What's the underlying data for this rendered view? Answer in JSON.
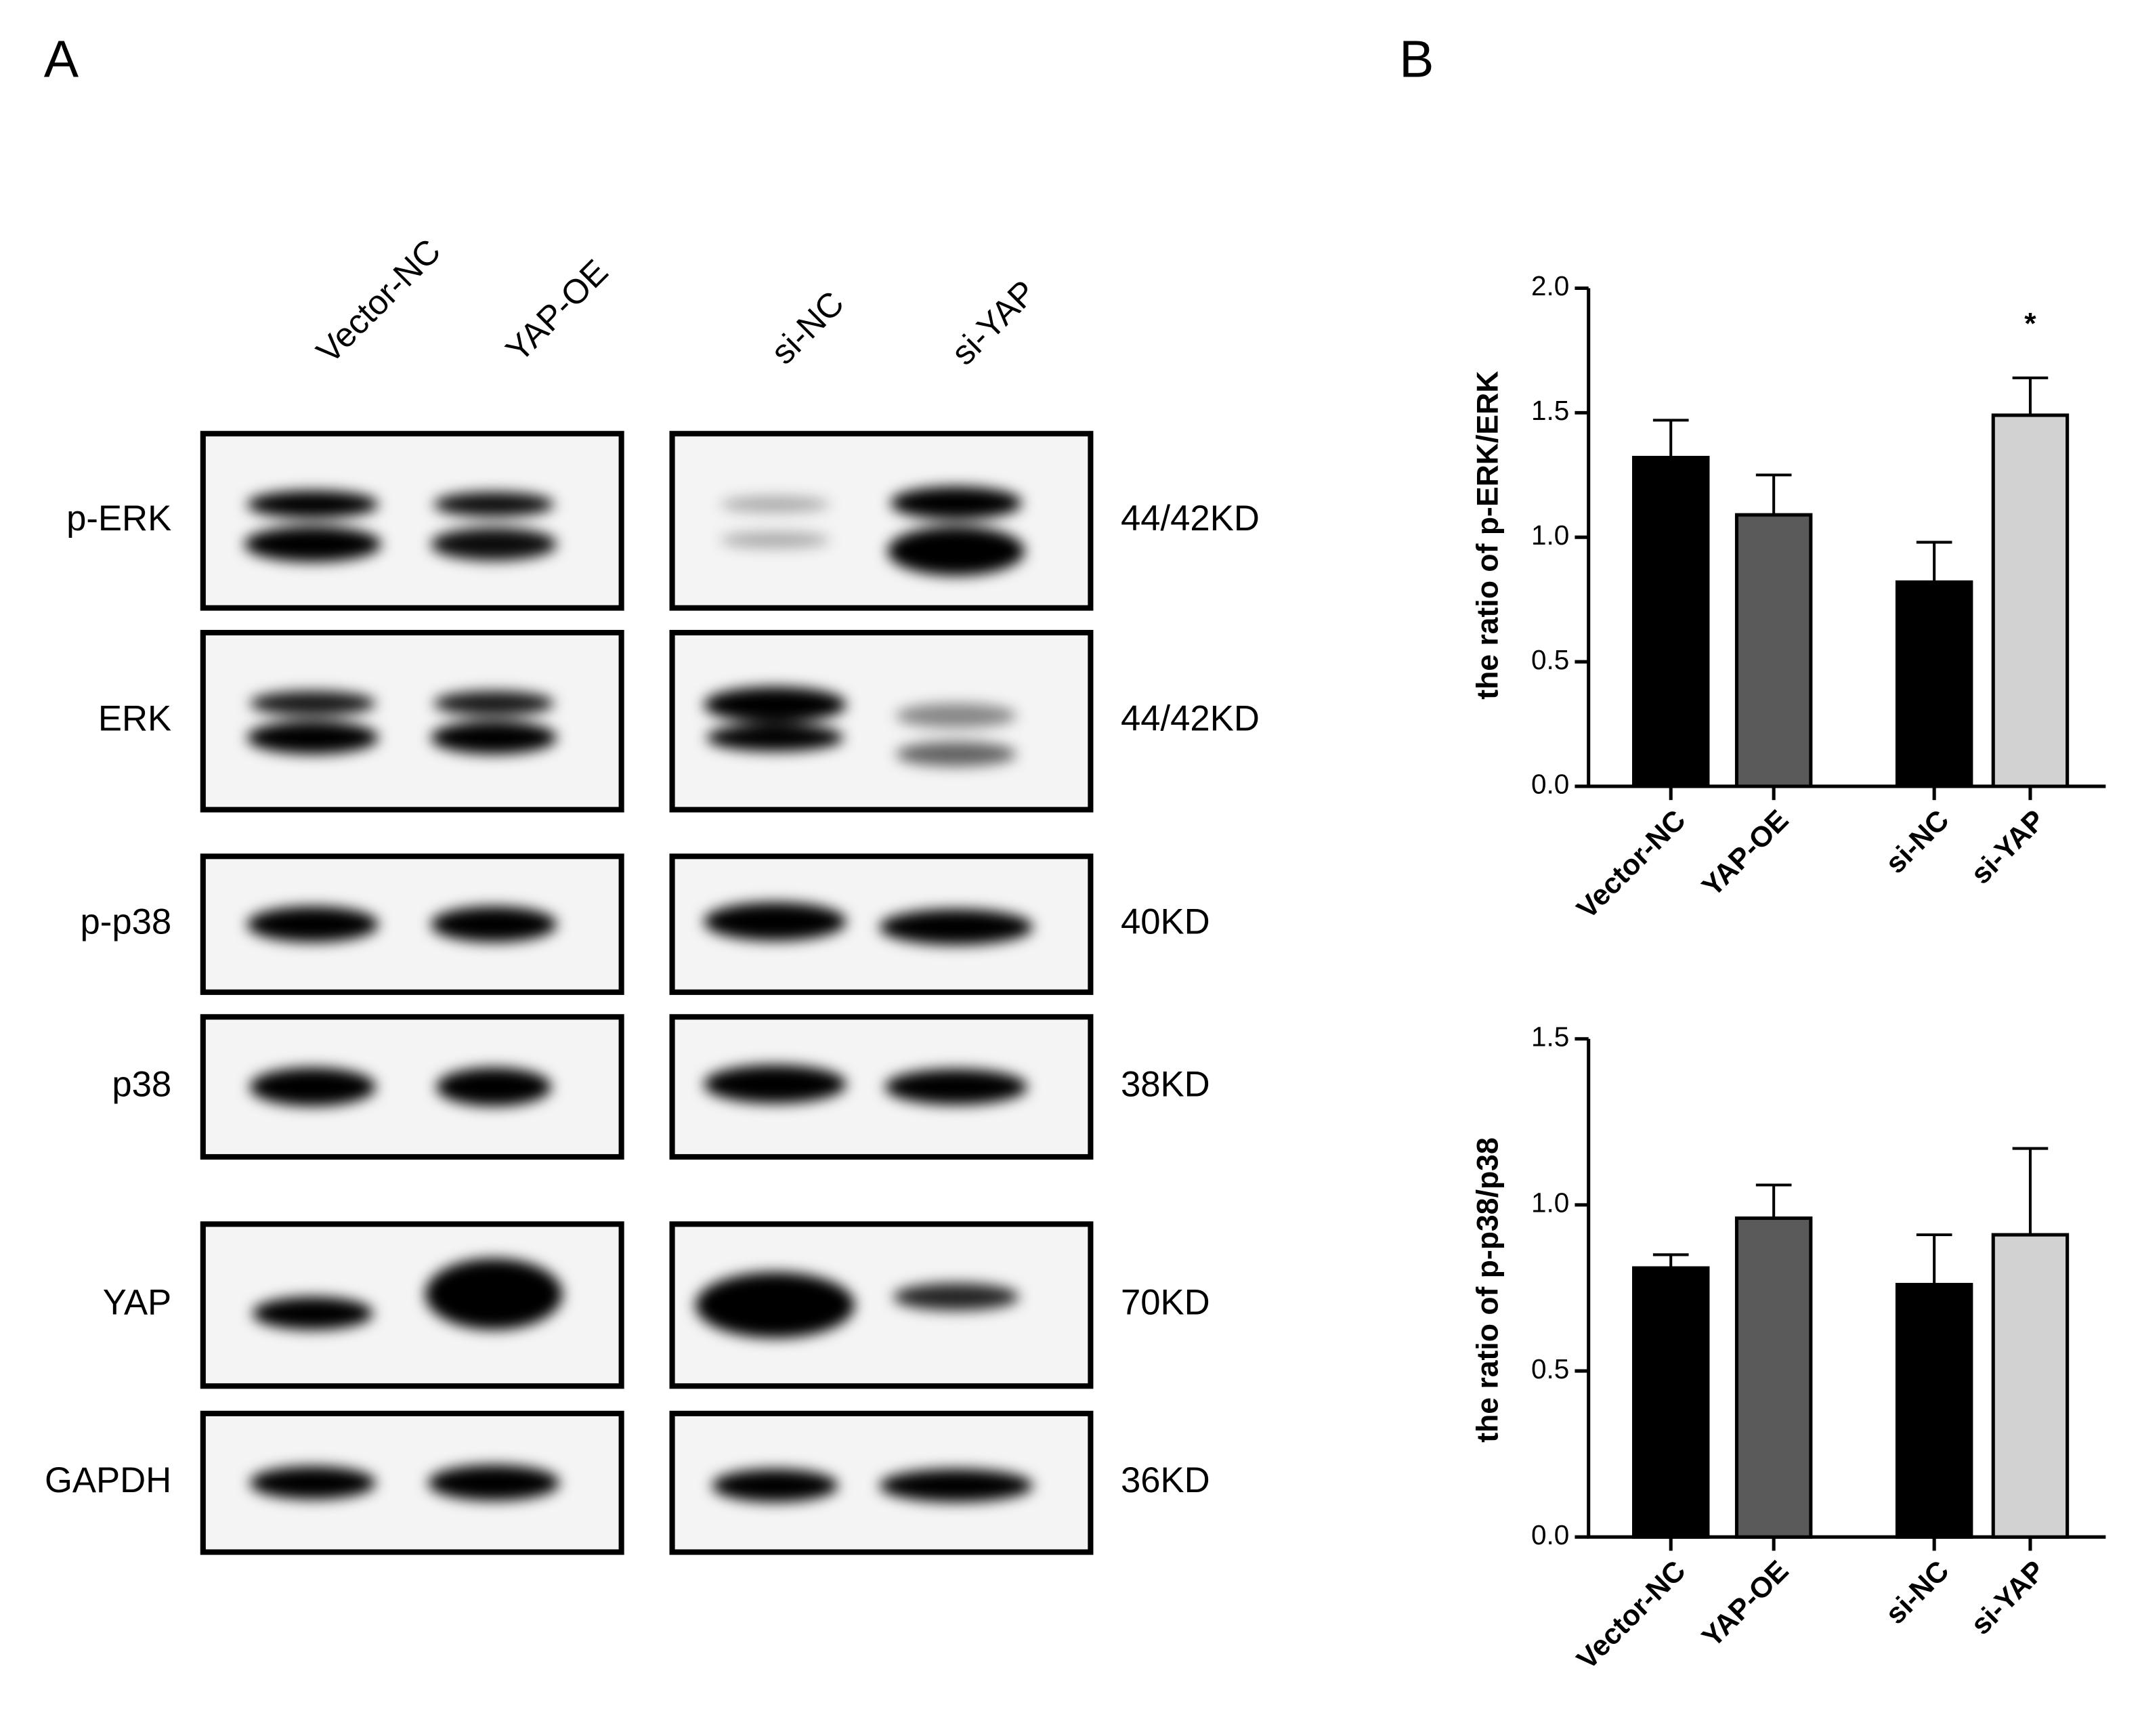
{
  "panel_labels": [
    "A",
    "B"
  ],
  "blot": {
    "lanes": [
      "Vector-NC",
      "YAP-OE",
      "si-NC",
      "si-YAP"
    ],
    "rows": [
      {
        "label": "p-ERK",
        "size": "44/42KD"
      },
      {
        "label": "ERK",
        "size": "44/42KD"
      },
      {
        "label": "p-p38",
        "size": "40KD"
      },
      {
        "label": "p38",
        "size": "38KD"
      },
      {
        "label": "YAP",
        "size": "70KD"
      },
      {
        "label": "GAPDH",
        "size": "36KD"
      }
    ]
  },
  "chart_data": [
    {
      "type": "bar",
      "ylabel": "the ratio of p-ERK/ERK",
      "categories": [
        "Vector-NC",
        "YAP-OE",
        "si-NC",
        "si-YAP"
      ],
      "values": [
        1.32,
        1.09,
        0.82,
        1.49
      ],
      "errors": [
        0.15,
        0.16,
        0.16,
        0.15
      ],
      "colors": [
        "#000000",
        "#5a5a5a",
        "#000000",
        "#d2d2d2"
      ],
      "annotations": [
        null,
        null,
        null,
        "*"
      ],
      "ylim": [
        0,
        2.0
      ],
      "yticks": [
        {
          "value": 0,
          "label": "0.0"
        },
        0.5,
        {
          "value": 1,
          "label": "1.0"
        },
        1.5,
        {
          "value": 2,
          "label": "2.0"
        }
      ]
    },
    {
      "type": "bar",
      "ylabel": "the ratio of p-p38/p38",
      "categories": [
        "Vector-NC",
        "YAP-OE",
        "si-NC",
        "si-YAP"
      ],
      "values": [
        0.81,
        0.96,
        0.76,
        0.91
      ],
      "errors": [
        0.04,
        0.1,
        0.15,
        0.26
      ],
      "colors": [
        "#000000",
        "#5a5a5a",
        "#000000",
        "#d2d2d2"
      ],
      "annotations": [
        null,
        null,
        null,
        null
      ],
      "ylim": [
        0,
        1.5
      ],
      "yticks": [
        {
          "value": 0,
          "label": "0.0"
        },
        0.5,
        {
          "value": 1,
          "label": "1.0"
        },
        1.5
      ]
    }
  ]
}
